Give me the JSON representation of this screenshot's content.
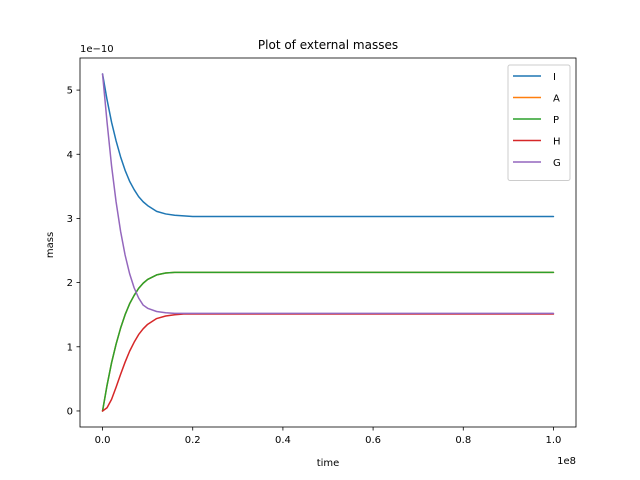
{
  "chart_data": {
    "type": "line",
    "title": "Plot of external masses",
    "xlabel": "time",
    "ylabel": "mass",
    "x_offset_text": "1e8",
    "y_offset_text": "1e−10",
    "xlim": [
      -0.05,
      1.05
    ],
    "ylim": [
      -0.25,
      5.5
    ],
    "xticks": [
      0.0,
      0.2,
      0.4,
      0.6,
      0.8,
      1.0
    ],
    "xtick_labels": [
      "0.0",
      "0.2",
      "0.4",
      "0.6",
      "0.8",
      "1.0"
    ],
    "yticks": [
      0,
      1,
      2,
      3,
      4,
      5
    ],
    "ytick_labels": [
      "0",
      "1",
      "2",
      "3",
      "4",
      "5"
    ],
    "grid": false,
    "legend_position": "top-right",
    "x": [
      0.0,
      0.01,
      0.02,
      0.03,
      0.04,
      0.05,
      0.06,
      0.07,
      0.08,
      0.09,
      0.1,
      0.12,
      0.14,
      0.16,
      0.18,
      0.2,
      0.25,
      0.3,
      0.4,
      0.5,
      0.6,
      0.7,
      0.8,
      0.9,
      1.0
    ],
    "series": [
      {
        "name": "I",
        "color": "#1f77b4",
        "values": [
          5.25,
          4.85,
          4.5,
          4.21,
          3.96,
          3.75,
          3.58,
          3.45,
          3.34,
          3.26,
          3.2,
          3.11,
          3.07,
          3.05,
          3.04,
          3.03,
          3.03,
          3.03,
          3.03,
          3.03,
          3.03,
          3.03,
          3.03,
          3.03,
          3.03
        ]
      },
      {
        "name": "A",
        "color": "#ff7f0e",
        "values": [
          0.0,
          0.4,
          0.75,
          1.04,
          1.29,
          1.5,
          1.67,
          1.8,
          1.91,
          1.99,
          2.05,
          2.12,
          2.15,
          2.16,
          2.16,
          2.16,
          2.16,
          2.16,
          2.16,
          2.16,
          2.16,
          2.16,
          2.16,
          2.16,
          2.16
        ]
      },
      {
        "name": "P",
        "color": "#2ca02c",
        "values": [
          0.0,
          0.4,
          0.75,
          1.04,
          1.29,
          1.5,
          1.67,
          1.8,
          1.91,
          1.99,
          2.05,
          2.12,
          2.15,
          2.16,
          2.16,
          2.16,
          2.16,
          2.16,
          2.16,
          2.16,
          2.16,
          2.16,
          2.16,
          2.16,
          2.16
        ]
      },
      {
        "name": "H",
        "color": "#d62728",
        "values": [
          0.0,
          0.05,
          0.18,
          0.37,
          0.57,
          0.76,
          0.93,
          1.07,
          1.19,
          1.28,
          1.35,
          1.44,
          1.48,
          1.5,
          1.51,
          1.51,
          1.51,
          1.51,
          1.51,
          1.51,
          1.51,
          1.51,
          1.51,
          1.51,
          1.51
        ]
      },
      {
        "name": "G",
        "color": "#9467bd",
        "values": [
          5.25,
          4.5,
          3.82,
          3.26,
          2.8,
          2.43,
          2.14,
          1.92,
          1.76,
          1.65,
          1.6,
          1.55,
          1.53,
          1.52,
          1.52,
          1.52,
          1.52,
          1.52,
          1.52,
          1.52,
          1.52,
          1.52,
          1.52,
          1.52,
          1.52
        ]
      }
    ]
  }
}
